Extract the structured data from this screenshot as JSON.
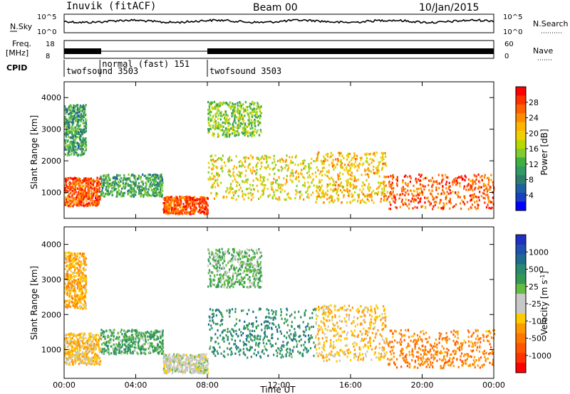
{
  "header": {
    "station": "Inuvik (fitACF)",
    "beam": "Beam 00",
    "date": "10/Jan/2015"
  },
  "panels": {
    "nsky": {
      "label": "N.Sky",
      "ticks": [
        "10^5",
        "10^0"
      ]
    },
    "nsearch": {
      "label": "N.Search",
      "ticks": [
        "10^5",
        "10^0"
      ]
    },
    "freq": {
      "label_top": "Freq.",
      "label_unit": "[MHz]",
      "ticks": [
        "18",
        "8"
      ]
    },
    "nave": {
      "label": "Nave",
      "ticks": [
        "60",
        "0"
      ]
    },
    "cpid": {
      "label": "CPID",
      "segments": [
        {
          "name": "twofsound 3503",
          "start": 0,
          "end": 2
        },
        {
          "name": "normal (fast) 151",
          "start": 2,
          "end": 8
        },
        {
          "name": "twofsound 3503",
          "start": 8,
          "end": 24
        }
      ]
    }
  },
  "colorbars": {
    "power": {
      "label": "Power [dB]",
      "ticks": [
        "28",
        "24",
        "20",
        "16",
        "12",
        "8",
        "4"
      ],
      "colors": [
        "#ff0000",
        "#ff3000",
        "#ff6000",
        "#ff8c00",
        "#ffb400",
        "#f0d000",
        "#b8d800",
        "#80cc30",
        "#40b040",
        "#339966",
        "#2e7d6b",
        "#2060a0",
        "#1840c0",
        "#0000ff"
      ]
    },
    "velocity": {
      "label_main": "Velocity",
      "label_unit": "[m s",
      "label_exp": "-1",
      "label_close": "]",
      "ticks": [
        "1000",
        "500",
        "25",
        "-25",
        "-100",
        "-500",
        "-1000"
      ],
      "colors": [
        "#2030c0",
        "#2050b0",
        "#206a90",
        "#2a8a70",
        "#339955",
        "#66bb44",
        "#c8c8c8",
        "#c8c8c8",
        "#ffcc00",
        "#ff9900",
        "#ff7700",
        "#ff5500",
        "#ff3300",
        "#ff0000"
      ]
    }
  },
  "chart_data": {
    "type": "heatmap",
    "x": {
      "label": "Time UT",
      "ticks": [
        "00:00",
        "04:00",
        "08:00",
        "12:00",
        "16:00",
        "20:00",
        "00:00"
      ],
      "range": [
        0,
        24
      ]
    },
    "y": {
      "label": "Slant Range [km]",
      "ticks": [
        "1000",
        "2000",
        "3000",
        "4000"
      ],
      "range": [
        180,
        4500
      ]
    },
    "power_regions": [
      {
        "t0": 0.0,
        "t1": 2.0,
        "r0": 600,
        "r1": 1500,
        "level": 26
      },
      {
        "t0": 2.0,
        "t1": 5.5,
        "r0": 900,
        "r1": 1600,
        "level": 10
      },
      {
        "t0": 5.5,
        "t1": 8.0,
        "r0": 350,
        "r1": 900,
        "level": 26
      },
      {
        "t0": 8.0,
        "t1": 14.0,
        "r0": 800,
        "r1": 2200,
        "level": 18
      },
      {
        "t0": 14.0,
        "t1": 18.0,
        "r0": 700,
        "r1": 2300,
        "level": 20
      },
      {
        "t0": 18.0,
        "t1": 24.0,
        "r0": 500,
        "r1": 1600,
        "level": 26
      },
      {
        "t0": 0.0,
        "t1": 1.2,
        "r0": 2200,
        "r1": 3800,
        "level": 10
      },
      {
        "t0": 8.0,
        "t1": 11.0,
        "r0": 2800,
        "r1": 3900,
        "level": 14
      }
    ],
    "velocity_regions": [
      {
        "t0": 0.0,
        "t1": 2.0,
        "r0": 600,
        "r1": 1500,
        "v": -300
      },
      {
        "t0": 2.0,
        "t1": 5.5,
        "r0": 900,
        "r1": 1600,
        "v": 400
      },
      {
        "t0": 5.5,
        "t1": 8.0,
        "r0": 350,
        "r1": 900,
        "v": 0
      },
      {
        "t0": 8.0,
        "t1": 14.0,
        "r0": 800,
        "r1": 2200,
        "v": 600
      },
      {
        "t0": 14.0,
        "t1": 18.0,
        "r0": 700,
        "r1": 2300,
        "v": -300
      },
      {
        "t0": 18.0,
        "t1": 24.0,
        "r0": 500,
        "r1": 1600,
        "v": -600
      },
      {
        "t0": 0.0,
        "t1": 1.2,
        "r0": 2200,
        "r1": 3800,
        "v": -400
      },
      {
        "t0": 8.0,
        "t1": 11.0,
        "r0": 2800,
        "r1": 3900,
        "v": 300
      }
    ]
  }
}
